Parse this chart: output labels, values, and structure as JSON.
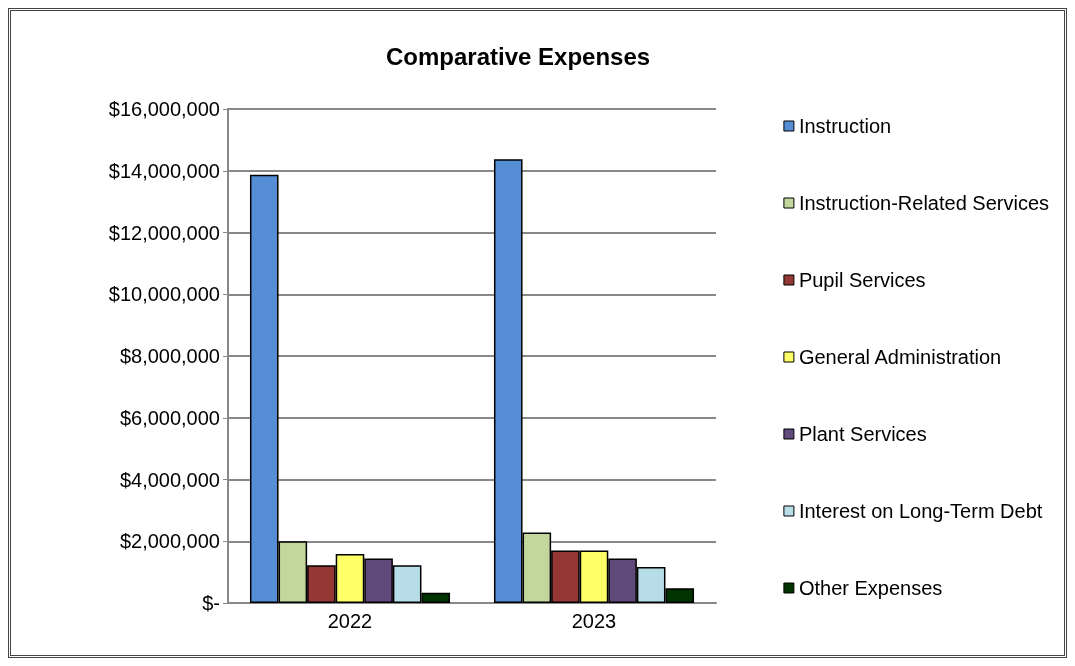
{
  "chart_data": {
    "type": "bar",
    "title": "Comparative Expenses",
    "categories": [
      "2022",
      "2023"
    ],
    "series": [
      {
        "name": "Instruction",
        "color": "#558ed5",
        "values": [
          13870000,
          14370000
        ]
      },
      {
        "name": "Instruction-Related Services",
        "color": "#c3d69b",
        "values": [
          2000000,
          2280000
        ]
      },
      {
        "name": "Pupil Services",
        "color": "#953735",
        "values": [
          1220000,
          1700000
        ]
      },
      {
        "name": "General Administration",
        "color": "#ffff66",
        "values": [
          1590000,
          1700000
        ]
      },
      {
        "name": "Plant Services",
        "color": "#604a7b",
        "values": [
          1440000,
          1440000
        ]
      },
      {
        "name": "Interest on Long-Term Debt",
        "color": "#b7dee8",
        "values": [
          1220000,
          1170000
        ]
      },
      {
        "name": "Other Expenses",
        "color": "#003300",
        "values": [
          330000,
          480000
        ]
      }
    ],
    "ylim": [
      0,
      16000000
    ],
    "yticks": [
      {
        "value": 0,
        "label": "$-"
      },
      {
        "value": 2000000,
        "label": "$2,000,000"
      },
      {
        "value": 4000000,
        "label": "$4,000,000"
      },
      {
        "value": 6000000,
        "label": "$6,000,000"
      },
      {
        "value": 8000000,
        "label": "$8,000,000"
      },
      {
        "value": 10000000,
        "label": "$10,000,000"
      },
      {
        "value": 12000000,
        "label": "$12,000,000"
      },
      {
        "value": 14000000,
        "label": "$14,000,000"
      },
      {
        "value": 16000000,
        "label": "$16,000,000"
      }
    ],
    "grid": "y",
    "legend": "right"
  }
}
